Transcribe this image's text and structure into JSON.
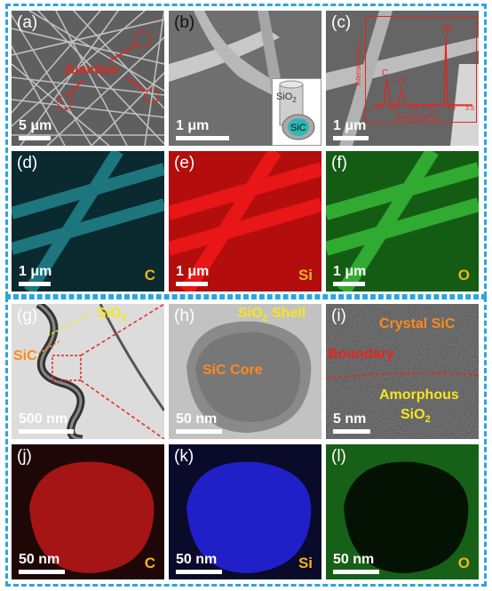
{
  "colors": {
    "frame": "#2aa6e0",
    "annotation_red": "#e8231b",
    "annotation_yellow": "#f5e71a",
    "annotation_orange": "#ff8a1c",
    "element_label": "#f2b418"
  },
  "panels": {
    "a": {
      "label": "(a)",
      "scale": "5 μm",
      "annotation": "Junction"
    },
    "b": {
      "label": "(b)",
      "scale": "1 μm",
      "inset_shell": "SiO",
      "inset_shell_sub": "2",
      "inset_core": "SiC"
    },
    "c": {
      "label": "(c)",
      "scale": "1 μm",
      "eds_y_label": "Intensity (a.u.)",
      "eds_x_label": "Energy (keV)",
      "eds_ticks": [
        "0.0",
        "0.5",
        "1.0",
        "1.5",
        "2.0",
        "2.5"
      ],
      "peaks": [
        "C",
        "O",
        "Si"
      ]
    },
    "d": {
      "label": "(d)",
      "scale": "1 μm",
      "element": "C"
    },
    "e": {
      "label": "(e)",
      "scale": "1 μm",
      "element": "Si"
    },
    "f": {
      "label": "(f)",
      "scale": "1 μm",
      "element": "O"
    },
    "g": {
      "label": "(g)",
      "scale": "500 nm",
      "sio2": "SiO",
      "sio2_sub": "2",
      "sic": "SiC"
    },
    "h": {
      "label": "(h)",
      "scale": "50 nm",
      "shell": "SiO",
      "shell_sub": "2",
      "shell_word": " Shell",
      "core": "SiC Core"
    },
    "i": {
      "label": "(i)",
      "scale": "5 nm",
      "crystal": "Crystal SiC",
      "boundary": "Boundary",
      "amorphous": "Amorphous",
      "amorphous2": "SiO",
      "amorphous2_sub": "2"
    },
    "j": {
      "label": "(j)",
      "scale": "50 nm",
      "element": "C"
    },
    "k": {
      "label": "(k)",
      "scale": "50 nm",
      "element": "Si"
    },
    "l": {
      "label": "(l)",
      "scale": "50 nm",
      "element": "O"
    }
  }
}
